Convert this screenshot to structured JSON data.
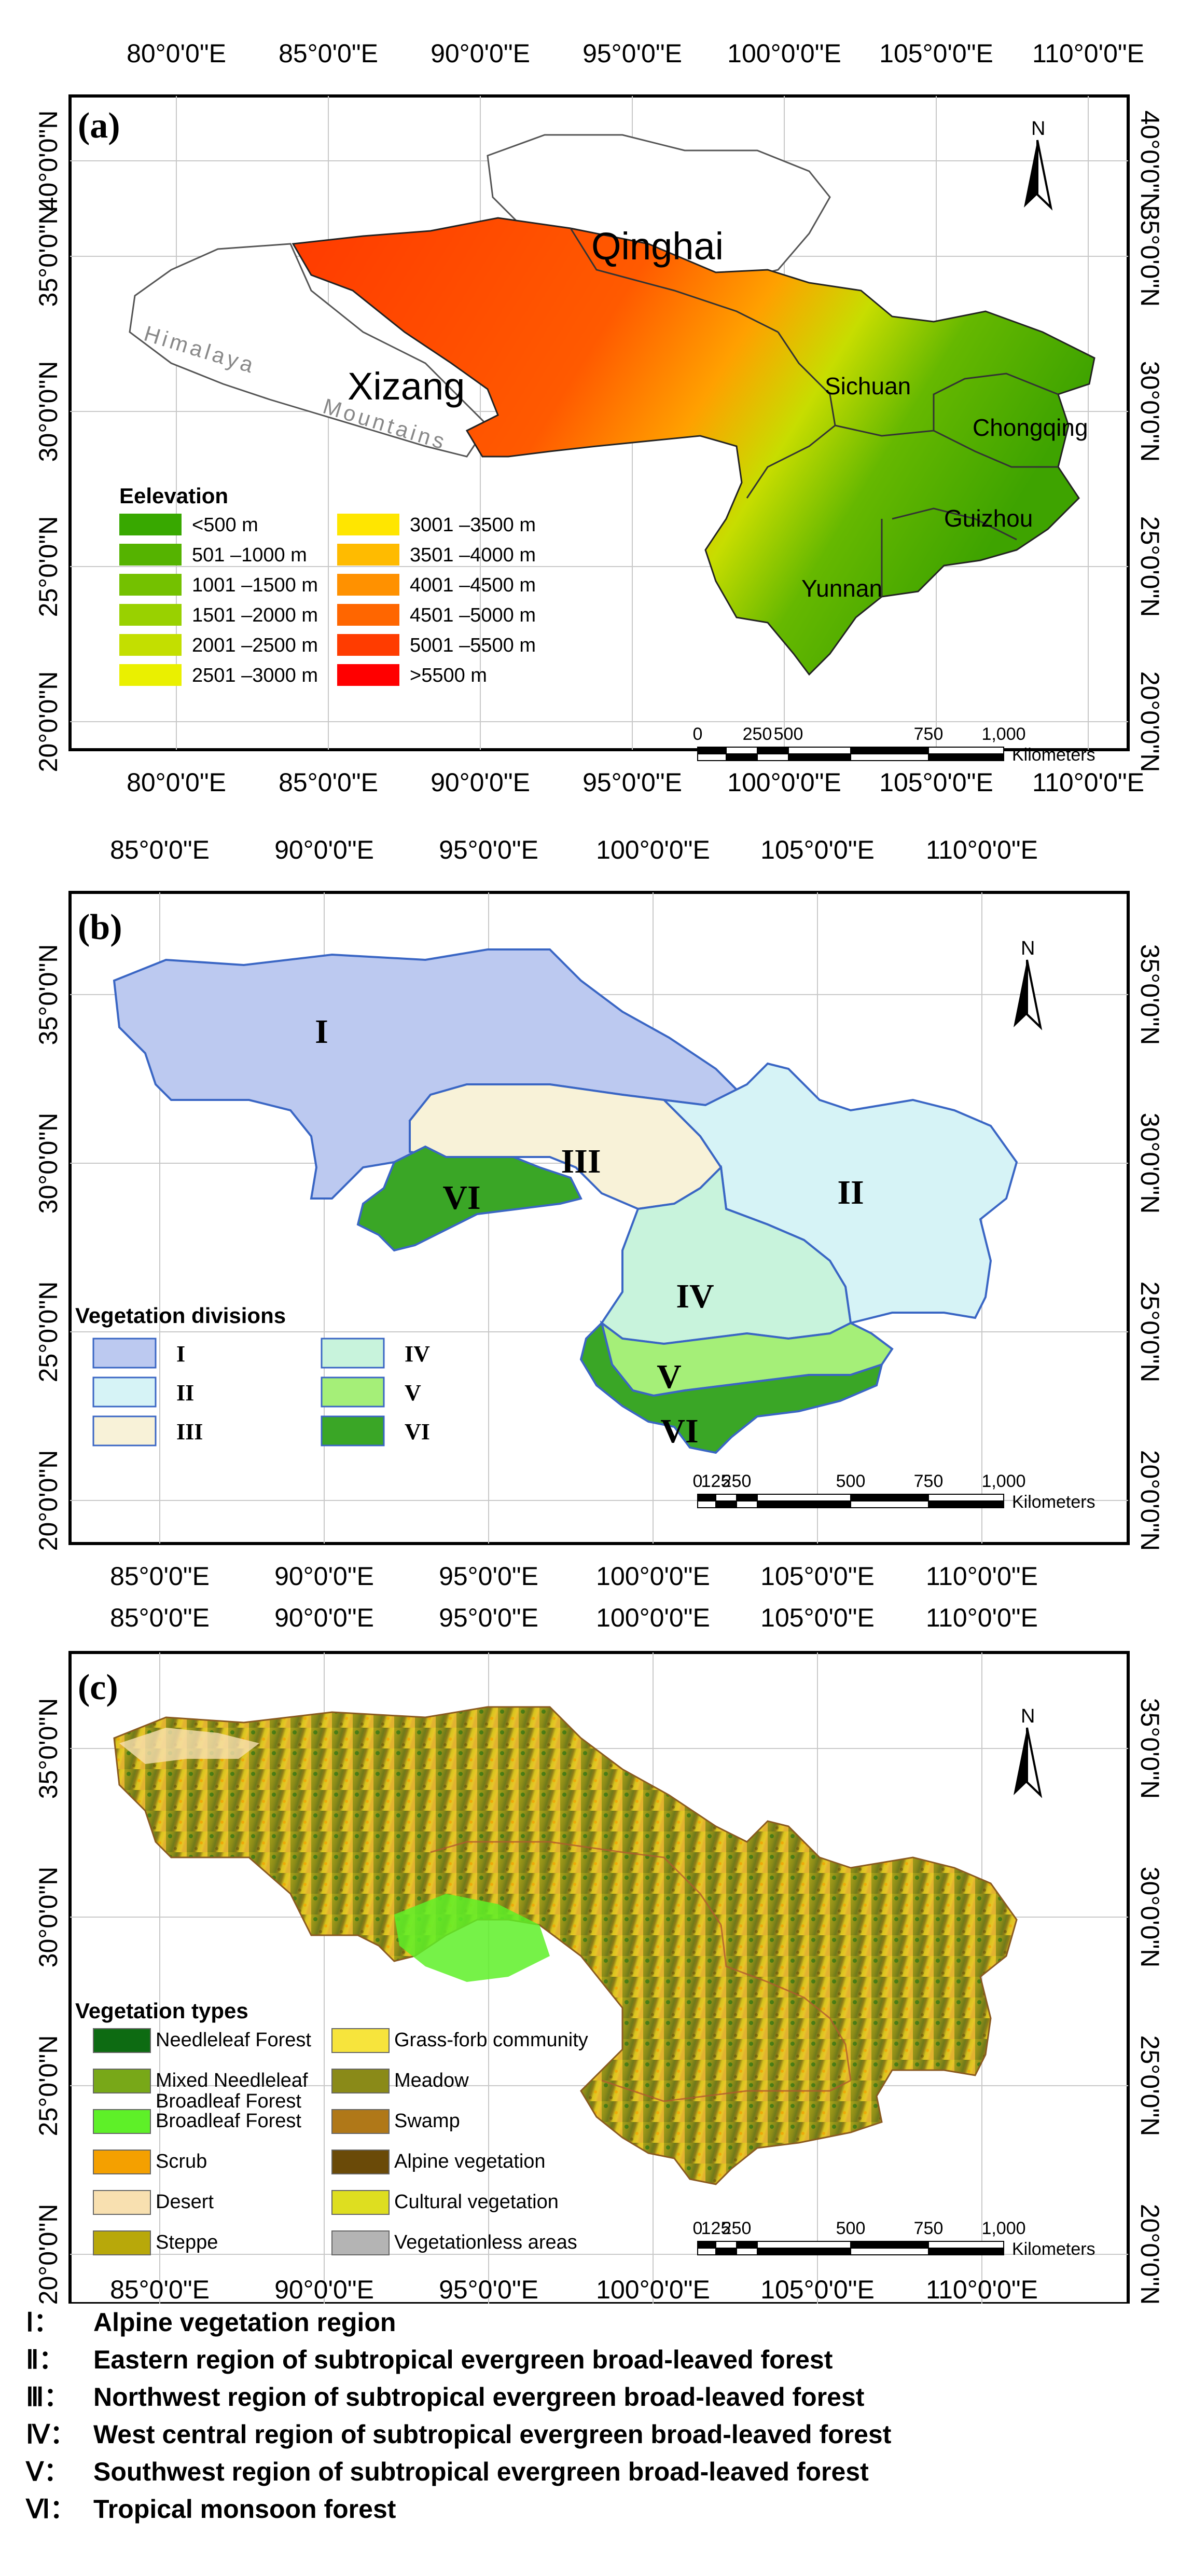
{
  "axes": {
    "a": {
      "top_lon": [
        "80°0'0\"E",
        "85°0'0\"E",
        "90°0'0\"E",
        "95°0'0\"E",
        "100°0'0\"E",
        "105°0'0\"E",
        "110°0'0\"E"
      ],
      "bottom_lon": [
        "80°0'0\"E",
        "85°0'0\"E",
        "90°0'0\"E",
        "95°0'0\"E",
        "100°0'0\"E",
        "105°0'0\"E",
        "110°0'0\"E"
      ],
      "lat": [
        "40°0'0\"N",
        "35°0'0\"N",
        "30°0'0\"N",
        "25°0'0\"N",
        "20°0'0\"N"
      ]
    },
    "b": {
      "lon": [
        "85°0'0\"E",
        "90°0'0\"E",
        "95°0'0\"E",
        "100°0'0\"E",
        "105°0'0\"E",
        "110°0'0\"E"
      ],
      "lat": [
        "35°0'0\"N",
        "30°0'0\"N",
        "25°0'0\"N",
        "20°0'0\"N"
      ]
    },
    "c": {
      "lon": [
        "85°0'0\"E",
        "90°0'0\"E",
        "95°0'0\"E",
        "100°0'0\"E",
        "105°0'0\"E",
        "110°0'0\"E"
      ],
      "lat": [
        "35°0'0\"N",
        "30°0'0\"N",
        "25°0'0\"N",
        "20°0'0\"N"
      ]
    }
  },
  "panel_a": {
    "letter": "(a)",
    "north": "N",
    "places": {
      "qinghai": "Qinghai",
      "xizang": "Xizang",
      "sichuan": "Sichuan",
      "chongqing": "Chongqing",
      "guizhou": "Guizhou",
      "yunnan": "Yunnan",
      "himalaya": "Himalaya",
      "mountains": "Mountains"
    },
    "legend_title": "Eelevation",
    "legend": [
      {
        "label": "<500 m",
        "color": "#38a800"
      },
      {
        "label": "501 –1000 m",
        "color": "#55b300"
      },
      {
        "label": "1001 –1500 m",
        "color": "#74c100"
      },
      {
        "label": "1501 –2000 m",
        "color": "#99d100"
      },
      {
        "label": "2001 –2500 m",
        "color": "#c3df00"
      },
      {
        "label": "2501 –3000 m",
        "color": "#eaf000"
      },
      {
        "label": "3001 –3500 m",
        "color": "#ffe600"
      },
      {
        "label": "3501 –4000 m",
        "color": "#ffbb00"
      },
      {
        "label": "4001 –4500 m",
        "color": "#ff9100"
      },
      {
        "label": "4501 –5000 m",
        "color": "#ff6600"
      },
      {
        "label": "5001 –5500 m",
        "color": "#ff3c00"
      },
      {
        "label": ">5500 m",
        "color": "#ff0000"
      }
    ],
    "scale_ticks": [
      "0",
      "250",
      "500",
      "750",
      "1,000"
    ],
    "scale_unit": "Kilometers"
  },
  "panel_b": {
    "letter": "(b)",
    "north": "N",
    "legend_title": "Vegetation divisions",
    "legend": [
      {
        "label": "I",
        "color": "#bcc9f0"
      },
      {
        "label": "II",
        "color": "#d6f3f6"
      },
      {
        "label": "III",
        "color": "#f8f2d8"
      },
      {
        "label": "IV",
        "color": "#c8f3dc"
      },
      {
        "label": "V",
        "color": "#a5ef78"
      },
      {
        "label": "VI",
        "color": "#3aa626"
      }
    ],
    "region_labels": [
      "I",
      "II",
      "III",
      "IV",
      "V",
      "VI",
      "VI"
    ],
    "scale_ticks": [
      "0",
      "125",
      "250",
      "500",
      "750",
      "1,000"
    ],
    "scale_unit": "Kilometers"
  },
  "panel_c": {
    "letter": "(c)",
    "north": "N",
    "legend_title": "Vegetation types",
    "legend": [
      {
        "label": "Needleleaf Forest",
        "color": "#0d6b12"
      },
      {
        "label": "Mixed Needleleaf",
        "label2": "Broadleaf Forest",
        "color": "#78a818"
      },
      {
        "label": "Broadleaf Forest",
        "color": "#5ef028"
      },
      {
        "label": "Scrub",
        "color": "#f4a000"
      },
      {
        "label": "Desert",
        "color": "#f8e0b0"
      },
      {
        "label": "Steppe",
        "color": "#b8a80a"
      },
      {
        "label": "Grass-forb community",
        "color": "#f7e43c"
      },
      {
        "label": "Meadow",
        "color": "#8a8a18"
      },
      {
        "label": "Swamp",
        "color": "#b07818"
      },
      {
        "label": "Alpine vegetation",
        "color": "#6a4a08"
      },
      {
        "label": "Cultural vegetation",
        "color": "#dede20"
      },
      {
        "label": "Vegetationless areas",
        "color": "#b4b4b4"
      }
    ],
    "scale_ticks": [
      "0",
      "125",
      "250",
      "500",
      "750",
      "1,000"
    ],
    "scale_unit": "Kilometers"
  },
  "notes": [
    {
      "key": "Ⅰ：",
      "text": "Alpine vegetation region"
    },
    {
      "key": "Ⅱ：",
      "text": "Eastern region of subtropical evergreen broad-leaved forest"
    },
    {
      "key": "Ⅲ：",
      "text": "Northwest region of subtropical evergreen broad-leaved forest"
    },
    {
      "key": "Ⅳ：",
      "text": "West central region of subtropical evergreen broad-leaved forest"
    },
    {
      "key": "Ⅴ：",
      "text": "Southwest region of subtropical evergreen broad-leaved forest"
    },
    {
      "key": "Ⅵ：",
      "text": "Tropical monsoon forest"
    }
  ]
}
